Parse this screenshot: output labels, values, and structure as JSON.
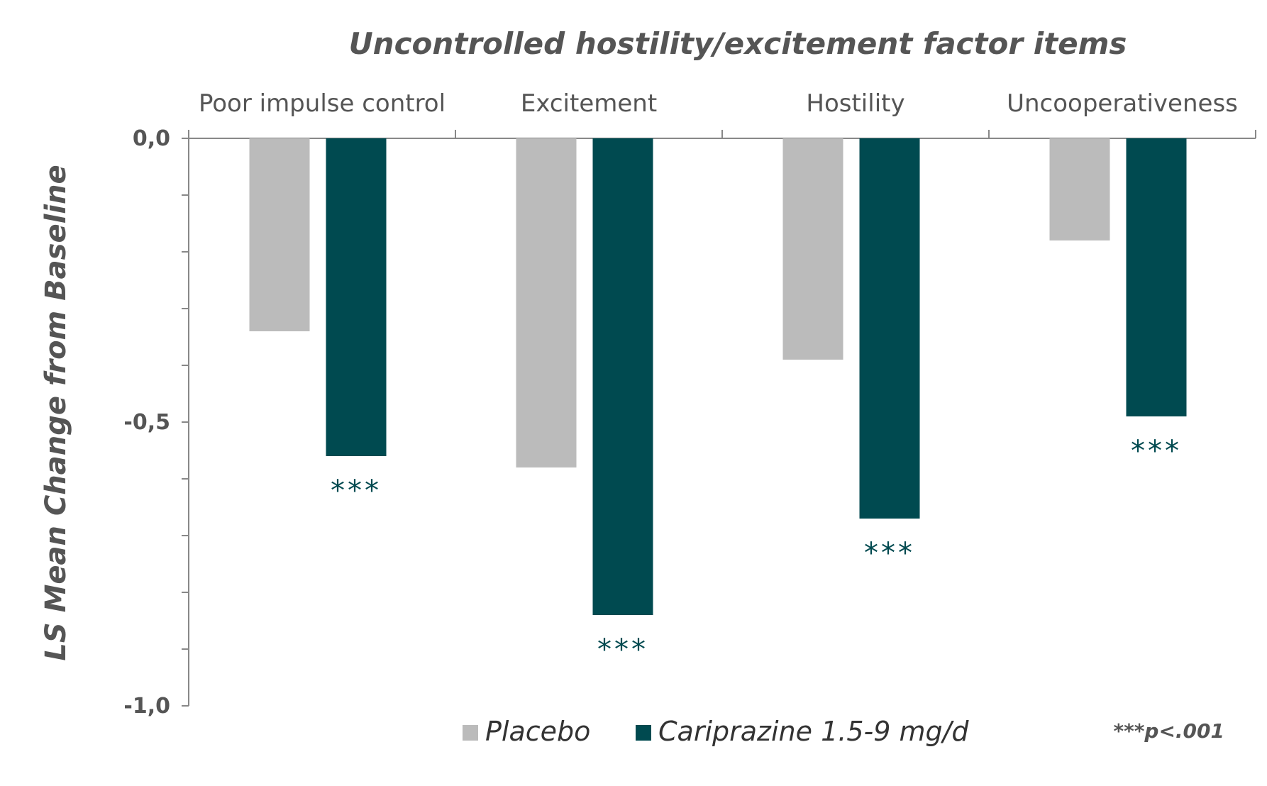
{
  "chart_data": {
    "type": "bar",
    "title": "Uncontrolled hostility/excitement factor items",
    "ylabel": "LS Mean Change from Baseline",
    "xlabel": "",
    "categories": [
      "Poor impulse control",
      "Excitement",
      "Hostility",
      "Uncooperativeness"
    ],
    "series": [
      {
        "name": "Placebo",
        "color": "#bbbbbb",
        "values": [
          -0.34,
          -0.58,
          -0.39,
          -0.18
        ]
      },
      {
        "name": "Cariprazine 1.5-9 mg/d",
        "color": "#004a50",
        "values": [
          -0.56,
          -0.84,
          -0.67,
          -0.49
        ]
      }
    ],
    "significance": [
      "***",
      "***",
      "***",
      "***"
    ],
    "ylim": [
      -1.0,
      0.0
    ],
    "yticks": [
      {
        "value": 0.0,
        "label": "0,0"
      },
      {
        "value": -0.5,
        "label": "-0,5"
      },
      {
        "value": -1.0,
        "label": "-1,0"
      }
    ],
    "minor_tick_step": 0.1,
    "legend_position": "bottom",
    "footnote": "***p<.001",
    "grid": false
  }
}
